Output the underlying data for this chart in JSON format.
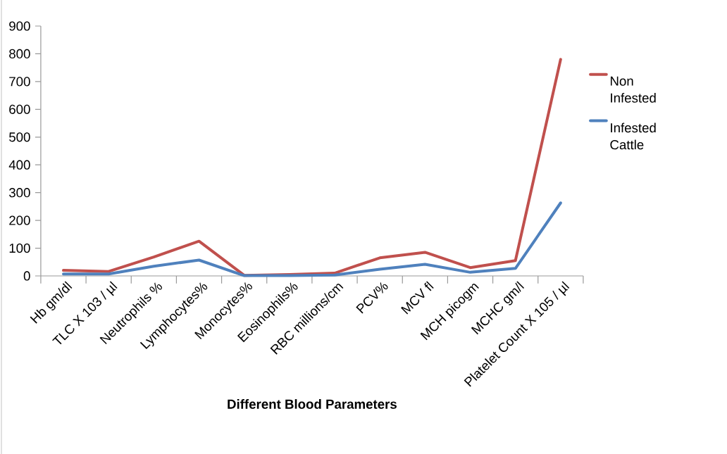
{
  "chart_data": {
    "type": "line",
    "xlabel": "Different Blood Parameters",
    "categories": [
      "Hb gm/dl",
      "TLC X 103 / µl",
      "Neutrophils %",
      "Lymphocytes%",
      "Monocytes%",
      "Eosinophils%",
      "RBC millions/cm",
      "PCV%",
      "MCV fl",
      "MCH picogm",
      "MCHC gm/l",
      "Platelet Count X 105 / µl"
    ],
    "series": [
      {
        "name": "Non Infested",
        "color": "#c0504d",
        "values": [
          20,
          16,
          68,
          125,
          2,
          5,
          10,
          65,
          85,
          30,
          55,
          780
        ]
      },
      {
        "name": "Infested Cattle",
        "color": "#4f81bd",
        "values": [
          7,
          7,
          35,
          57,
          1,
          1,
          3,
          24,
          42,
          13,
          27,
          263
        ]
      }
    ],
    "ylim": [
      0,
      900
    ],
    "yticks": [
      0,
      100,
      200,
      300,
      400,
      500,
      600,
      700,
      800,
      900
    ],
    "grid": false,
    "legend": "right",
    "marker": "none",
    "line_style": "solid"
  }
}
